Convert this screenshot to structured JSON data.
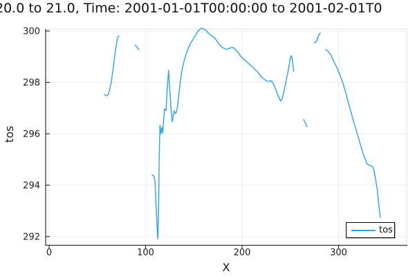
{
  "title": "20.0 to 21.0, Time: 2001-01-01T00:00:00 to 2001-02-01T0",
  "chart_data": {
    "type": "line",
    "title": "20.0 to 21.0, Time: 2001-01-01T00:00:00 to 2001-02-01T0",
    "xlabel": "X",
    "ylabel": "tos",
    "x_ticks": [
      0,
      100,
      200,
      300
    ],
    "x_tick_labels": [
      "0",
      "100",
      "200",
      "300"
    ],
    "y_ticks": [
      292,
      294,
      296,
      298,
      300
    ],
    "y_tick_labels": [
      "292",
      "294",
      "296",
      "298",
      "300"
    ],
    "xlim": [
      -3.6,
      370.6
    ],
    "ylim": [
      291.66,
      300.08
    ],
    "grid": true,
    "legend_position": "bottom-right",
    "legend": {
      "entries": [
        {
          "label": "tos",
          "color": "#2aa3f0"
        }
      ]
    },
    "colors": {
      "series": "#2aa3f0",
      "grid": "#ececec",
      "frame_light": "#e3e3e3",
      "spine": "#2e2e2e",
      "text": "#1c1c1c"
    },
    "series": [
      {
        "name": "tos",
        "color": "#2aa3f0",
        "segments": [
          [
            [
              57.3,
              297.54
            ],
            [
              58.8,
              297.49
            ],
            [
              60.2,
              297.48
            ],
            [
              61.6,
              297.56
            ],
            [
              63.1,
              297.77
            ],
            [
              64.5,
              298.04
            ],
            [
              65.9,
              298.42
            ],
            [
              67.4,
              298.85
            ],
            [
              68.8,
              299.28
            ],
            [
              70.3,
              299.62
            ],
            [
              71.3,
              299.77
            ],
            [
              72.4,
              299.81
            ]
          ],
          [
            [
              89.1,
              299.46
            ],
            [
              91.0,
              299.37
            ],
            [
              93.0,
              299.27
            ]
          ],
          [
            [
              106.8,
              294.4
            ],
            [
              108.6,
              294.36
            ],
            [
              109.7,
              294.15
            ],
            [
              110.6,
              293.39
            ],
            [
              112.0,
              292.31
            ],
            [
              112.7,
              291.91
            ],
            [
              113.5,
              293.21
            ],
            [
              114.0,
              294.82
            ],
            [
              114.9,
              296.34
            ],
            [
              115.9,
              296.0
            ],
            [
              116.8,
              296.25
            ],
            [
              117.6,
              296.03
            ],
            [
              118.6,
              296.51
            ],
            [
              119.7,
              296.97
            ],
            [
              121.1,
              296.9
            ],
            [
              122.6,
              297.85
            ],
            [
              123.8,
              298.47
            ],
            [
              125.1,
              297.72
            ],
            [
              126.5,
              296.91
            ],
            [
              127.6,
              296.47
            ],
            [
              128.7,
              296.7
            ],
            [
              129.7,
              296.89
            ],
            [
              130.8,
              296.79
            ],
            [
              131.9,
              296.83
            ],
            [
              133.0,
              297.05
            ],
            [
              134.3,
              297.5
            ],
            [
              135.9,
              297.99
            ],
            [
              137.8,
              298.49
            ],
            [
              139.8,
              298.82
            ],
            [
              141.4,
              299.03
            ],
            [
              143.6,
              299.26
            ],
            [
              145.9,
              299.47
            ],
            [
              148.4,
              299.63
            ],
            [
              150.9,
              299.79
            ],
            [
              153.4,
              299.94
            ],
            [
              155.6,
              300.05
            ],
            [
              157.5,
              300.11
            ],
            [
              159.4,
              300.09
            ],
            [
              161.8,
              300.05
            ],
            [
              164.2,
              299.96
            ],
            [
              166.5,
              299.87
            ],
            [
              168.9,
              299.81
            ],
            [
              171.3,
              299.74
            ],
            [
              173.7,
              299.62
            ],
            [
              176.1,
              299.49
            ],
            [
              178.5,
              299.39
            ],
            [
              180.9,
              299.33
            ],
            [
              183.7,
              299.29
            ],
            [
              186.4,
              299.32
            ],
            [
              189.2,
              299.36
            ],
            [
              191.6,
              299.34
            ],
            [
              194.0,
              299.25
            ],
            [
              196.4,
              299.13
            ],
            [
              198.8,
              299.01
            ],
            [
              201.2,
              298.91
            ],
            [
              203.6,
              298.85
            ],
            [
              205.9,
              298.76
            ],
            [
              208.4,
              298.68
            ],
            [
              210.8,
              298.6
            ],
            [
              213.1,
              298.51
            ],
            [
              215.6,
              298.42
            ],
            [
              217.9,
              298.33
            ],
            [
              220.3,
              298.2
            ],
            [
              222.7,
              298.13
            ],
            [
              225.1,
              298.06
            ],
            [
              227.5,
              298.04
            ],
            [
              229.9,
              298.07
            ],
            [
              231.8,
              297.99
            ],
            [
              233.5,
              297.86
            ],
            [
              235.3,
              297.68
            ],
            [
              237.5,
              297.46
            ],
            [
              239.9,
              297.28
            ],
            [
              241.6,
              297.37
            ],
            [
              243.0,
              297.59
            ],
            [
              244.4,
              297.84
            ],
            [
              245.9,
              298.11
            ],
            [
              247.1,
              298.31
            ],
            [
              248.2,
              298.56
            ],
            [
              249.5,
              298.85
            ],
            [
              250.4,
              298.98
            ],
            [
              251.1,
              299.04
            ],
            [
              251.9,
              298.93
            ],
            [
              252.6,
              298.71
            ],
            [
              253.5,
              298.43
            ]
          ],
          [
            [
              263.8,
              296.56
            ],
            [
              265.0,
              296.47
            ],
            [
              266.1,
              296.37
            ],
            [
              267.4,
              296.28
            ]
          ],
          [
            [
              274.6,
              299.54
            ],
            [
              276.5,
              299.58
            ],
            [
              277.4,
              299.62
            ],
            [
              278.6,
              299.77
            ],
            [
              279.8,
              299.87
            ],
            [
              281.2,
              299.92
            ]
          ],
          [
            [
              286.5,
              299.28
            ],
            [
              288.2,
              299.25
            ],
            [
              290.1,
              299.16
            ],
            [
              292.0,
              299.06
            ],
            [
              293.7,
              298.93
            ],
            [
              295.3,
              298.8
            ],
            [
              297.3,
              298.65
            ],
            [
              299.1,
              298.5
            ],
            [
              300.9,
              298.33
            ],
            [
              302.7,
              298.16
            ],
            [
              304.5,
              297.97
            ],
            [
              306.3,
              297.74
            ],
            [
              308.1,
              297.5
            ],
            [
              309.9,
              297.25
            ],
            [
              311.6,
              297.01
            ],
            [
              313.5,
              296.76
            ],
            [
              315.2,
              296.52
            ],
            [
              317.1,
              296.29
            ],
            [
              318.8,
              296.07
            ],
            [
              320.6,
              295.84
            ],
            [
              322.4,
              295.6
            ],
            [
              324.2,
              295.38
            ],
            [
              326.0,
              295.17
            ],
            [
              327.8,
              294.99
            ],
            [
              329.1,
              294.86
            ],
            [
              330.7,
              294.8
            ],
            [
              332.4,
              294.77
            ],
            [
              334.0,
              294.75
            ],
            [
              335.5,
              294.71
            ],
            [
              336.7,
              294.58
            ],
            [
              337.4,
              294.42
            ],
            [
              338.4,
              294.21
            ],
            [
              339.3,
              294.01
            ],
            [
              340.3,
              293.78
            ],
            [
              340.7,
              293.57
            ],
            [
              341.5,
              293.34
            ],
            [
              342.0,
              293.11
            ],
            [
              342.7,
              292.91
            ],
            [
              343.3,
              292.75
            ]
          ]
        ]
      }
    ]
  }
}
